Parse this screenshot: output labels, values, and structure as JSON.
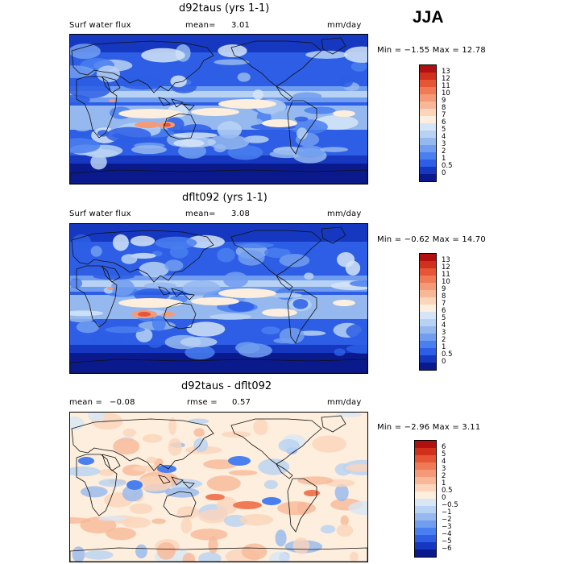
{
  "season": "JJA",
  "units": "mm/day",
  "panels": [
    {
      "title": "d92taus (yrs 1-1)",
      "field": "Surf water flux",
      "stat1_label": "mean=",
      "stat1_value": "3.01",
      "minmax": "Min = −1.55 Max = 12.78",
      "cmap": "precip",
      "colorbar": {
        "labels": [
          "13",
          "12",
          "11",
          "10",
          "9",
          "8",
          "7",
          "6",
          "5",
          "4",
          "3",
          "2",
          "1",
          "0.5",
          "0"
        ],
        "colors": [
          "#b01010",
          "#d0301c",
          "#e65535",
          "#f07a55",
          "#f59a78",
          "#f8b898",
          "#fbd5bc",
          "#fdeedd",
          "#d5e5f7",
          "#b8d2f3",
          "#95b8ee",
          "#719df0",
          "#4a7ff0",
          "#2d5ee5",
          "#1638c0",
          "#0a1a8c"
        ]
      }
    },
    {
      "title": "dflt092 (yrs 1-1)",
      "field": "Surf water flux",
      "stat1_label": "mean=",
      "stat1_value": "3.08",
      "minmax": "Min = −0.62 Max = 14.70",
      "cmap": "precip",
      "colorbar": {
        "labels": [
          "13",
          "12",
          "11",
          "10",
          "9",
          "8",
          "7",
          "6",
          "5",
          "4",
          "3",
          "2",
          "1",
          "0.5",
          "0"
        ],
        "colors": [
          "#b01010",
          "#d0301c",
          "#e65535",
          "#f07a55",
          "#f59a78",
          "#f8b898",
          "#fbd5bc",
          "#fdeedd",
          "#d5e5f7",
          "#b8d2f3",
          "#95b8ee",
          "#719df0",
          "#4a7ff0",
          "#2d5ee5",
          "#1638c0",
          "#0a1a8c"
        ]
      }
    },
    {
      "title": "d92taus - dflt092",
      "stat1_label": "mean =",
      "stat1_value": "−0.08",
      "stat2_label": "rmse =",
      "stat2_value": "0.57",
      "minmax": "Min = −2.96 Max = 3.11",
      "cmap": "diff",
      "colorbar": {
        "labels": [
          "6",
          "5",
          "4",
          "3",
          "2",
          "1",
          "0.5",
          "0",
          "−0.5",
          "−1",
          "−2",
          "−3",
          "−4",
          "−5",
          "−6"
        ],
        "colors": [
          "#b01010",
          "#d0301c",
          "#e65535",
          "#f07a55",
          "#f59a78",
          "#f8b898",
          "#fbd5bc",
          "#fdeedd",
          "#d8e6f5",
          "#b8d2f3",
          "#95b8ee",
          "#719df0",
          "#4a7ff0",
          "#2d5ee5",
          "#1638c0",
          "#0a1a8c"
        ]
      }
    }
  ]
}
